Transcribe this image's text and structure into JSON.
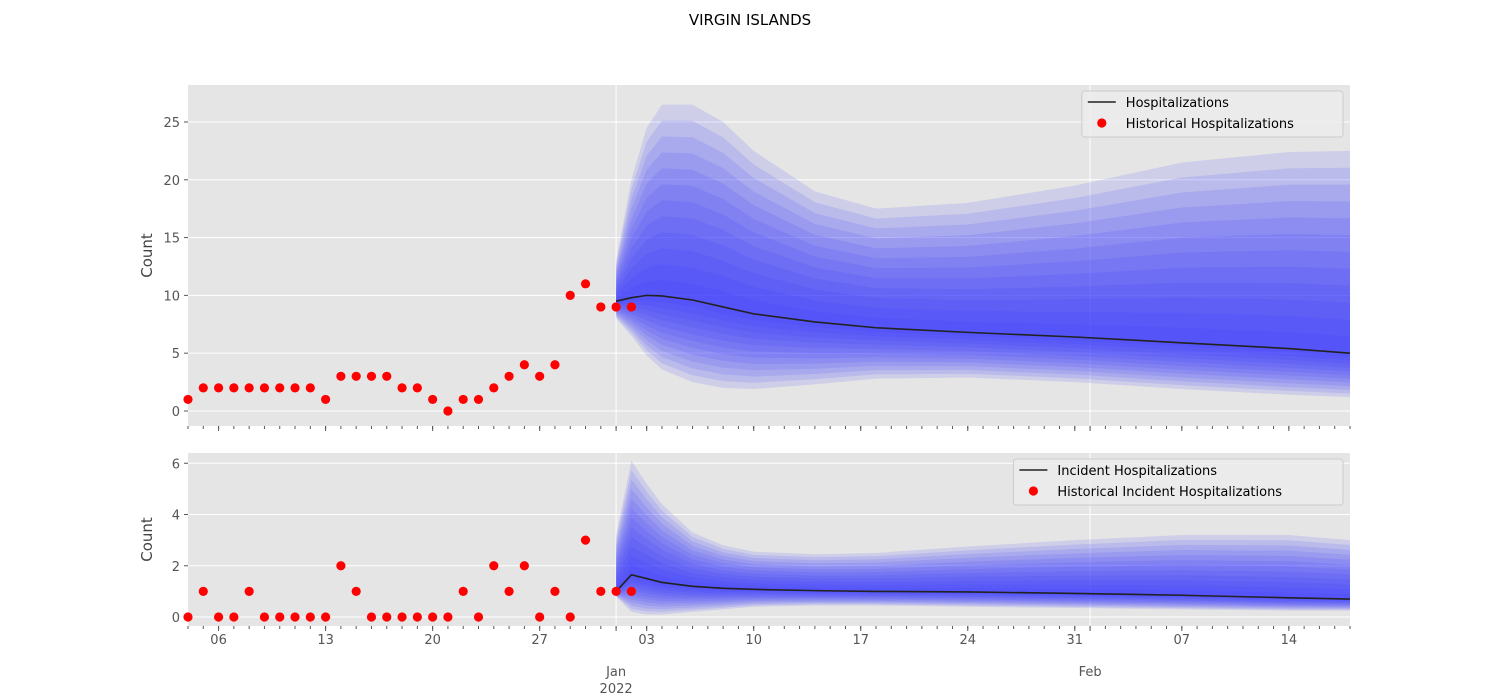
{
  "figure": {
    "title": "VIRGIN ISLANDS"
  },
  "colors": {
    "panel_bg": "#e5e5e5",
    "grid": "#ffffff",
    "band": "#3333ff",
    "median": "#222222",
    "observed": "#ff0000",
    "tick_text": "#555555"
  },
  "chart_data": [
    {
      "type": "line",
      "ylabel": "Count",
      "ylim": [
        -1.3,
        28.2
      ],
      "yticks": [
        0,
        5,
        10,
        15,
        20,
        25
      ],
      "xlim": [
        "2021-12-04",
        "2022-02-18"
      ],
      "legend": {
        "placement": "top-right",
        "entries": [
          "Hospitalizations",
          "Historical Hospitalizations"
        ]
      },
      "grid": true,
      "observed": {
        "name": "Historical Hospitalizations",
        "dates": [
          "2021-12-04",
          "2021-12-05",
          "2021-12-06",
          "2021-12-07",
          "2021-12-08",
          "2021-12-09",
          "2021-12-10",
          "2021-12-11",
          "2021-12-12",
          "2021-12-13",
          "2021-12-14",
          "2021-12-15",
          "2021-12-16",
          "2021-12-17",
          "2021-12-18",
          "2021-12-19",
          "2021-12-20",
          "2021-12-21",
          "2021-12-22",
          "2021-12-23",
          "2021-12-24",
          "2021-12-25",
          "2021-12-26",
          "2021-12-27",
          "2021-12-28",
          "2021-12-29",
          "2021-12-30",
          "2021-12-31",
          "2022-01-01",
          "2022-01-02"
        ],
        "values": [
          1,
          2,
          2,
          2,
          2,
          2,
          2,
          2,
          2,
          1,
          3,
          3,
          3,
          3,
          2,
          2,
          1,
          0,
          1,
          1,
          2,
          3,
          4,
          3,
          4,
          10,
          11,
          9,
          9,
          9
        ]
      },
      "forecast": {
        "name": "Hospitalizations",
        "dates": [
          "2022-01-01",
          "2022-01-02",
          "2022-01-03",
          "2022-01-04",
          "2022-01-06",
          "2022-01-08",
          "2022-01-10",
          "2022-01-14",
          "2022-01-18",
          "2022-01-24",
          "2022-01-31",
          "2022-02-07",
          "2022-02-14",
          "2022-02-18"
        ],
        "median": [
          9.5,
          9.8,
          10.0,
          9.95,
          9.6,
          9.0,
          8.4,
          7.7,
          7.2,
          6.8,
          6.4,
          5.9,
          5.4,
          5.0
        ],
        "upper": [
          13,
          20,
          24.5,
          26.5,
          26.5,
          25,
          22.5,
          19,
          17.5,
          18,
          19.5,
          21.5,
          22.4,
          22.5
        ],
        "lower": [
          8,
          6.5,
          4.8,
          3.6,
          2.5,
          2.0,
          1.9,
          2.3,
          2.8,
          2.9,
          2.5,
          1.9,
          1.4,
          1.2
        ]
      }
    },
    {
      "type": "line",
      "ylabel": "Count",
      "ylim": [
        -0.35,
        6.4
      ],
      "yticks": [
        0,
        2,
        4,
        6
      ],
      "xlim": [
        "2021-12-04",
        "2022-02-18"
      ],
      "legend": {
        "placement": "top-right",
        "entries": [
          "Incident Hospitalizations",
          "Historical Incident Hospitalizations"
        ]
      },
      "grid": true,
      "observed": {
        "name": "Historical Incident Hospitalizations",
        "dates": [
          "2021-12-04",
          "2021-12-05",
          "2021-12-06",
          "2021-12-07",
          "2021-12-08",
          "2021-12-09",
          "2021-12-10",
          "2021-12-11",
          "2021-12-12",
          "2021-12-13",
          "2021-12-14",
          "2021-12-15",
          "2021-12-16",
          "2021-12-17",
          "2021-12-18",
          "2021-12-19",
          "2021-12-20",
          "2021-12-21",
          "2021-12-22",
          "2021-12-23",
          "2021-12-24",
          "2021-12-25",
          "2021-12-26",
          "2021-12-27",
          "2021-12-28",
          "2021-12-29",
          "2021-12-30",
          "2021-12-31",
          "2022-01-01",
          "2022-01-02"
        ],
        "values": [
          0,
          1,
          0,
          0,
          1,
          0,
          0,
          0,
          0,
          0,
          2,
          1,
          0,
          0,
          0,
          0,
          0,
          0,
          1,
          0,
          2,
          1,
          2,
          0,
          1,
          0,
          3,
          1,
          1,
          1
        ]
      },
      "forecast": {
        "name": "Incident Hospitalizations",
        "dates": [
          "2022-01-01",
          "2022-01-02",
          "2022-01-03",
          "2022-01-04",
          "2022-01-06",
          "2022-01-08",
          "2022-01-10",
          "2022-01-14",
          "2022-01-18",
          "2022-01-24",
          "2022-01-31",
          "2022-02-07",
          "2022-02-14",
          "2022-02-18"
        ],
        "median": [
          1.0,
          1.65,
          1.5,
          1.35,
          1.2,
          1.12,
          1.08,
          1.03,
          1.0,
          0.98,
          0.92,
          0.85,
          0.75,
          0.7
        ],
        "upper": [
          3.2,
          6.1,
          5.2,
          4.4,
          3.3,
          2.8,
          2.55,
          2.45,
          2.5,
          2.75,
          3.0,
          3.2,
          3.2,
          3.0
        ],
        "lower": [
          0.8,
          0.2,
          0.1,
          0.1,
          0.2,
          0.3,
          0.4,
          0.45,
          0.45,
          0.4,
          0.35,
          0.3,
          0.25,
          0.25
        ]
      }
    }
  ],
  "xaxis": {
    "day_labels": [
      {
        "date": "2021-12-06",
        "label": "06"
      },
      {
        "date": "2021-12-13",
        "label": "13"
      },
      {
        "date": "2021-12-20",
        "label": "20"
      },
      {
        "date": "2021-12-27",
        "label": "27"
      },
      {
        "date": "2022-01-03",
        "label": "03"
      },
      {
        "date": "2022-01-10",
        "label": "10"
      },
      {
        "date": "2022-01-17",
        "label": "17"
      },
      {
        "date": "2022-01-24",
        "label": "24"
      },
      {
        "date": "2022-01-31",
        "label": "31"
      },
      {
        "date": "2022-02-07",
        "label": "07"
      },
      {
        "date": "2022-02-14",
        "label": "14"
      }
    ],
    "month_labels": [
      {
        "date": "2022-01-01",
        "label": "Jan",
        "sublabel": "2022"
      },
      {
        "date": "2022-02-01",
        "label": "Feb",
        "sublabel": ""
      }
    ]
  }
}
